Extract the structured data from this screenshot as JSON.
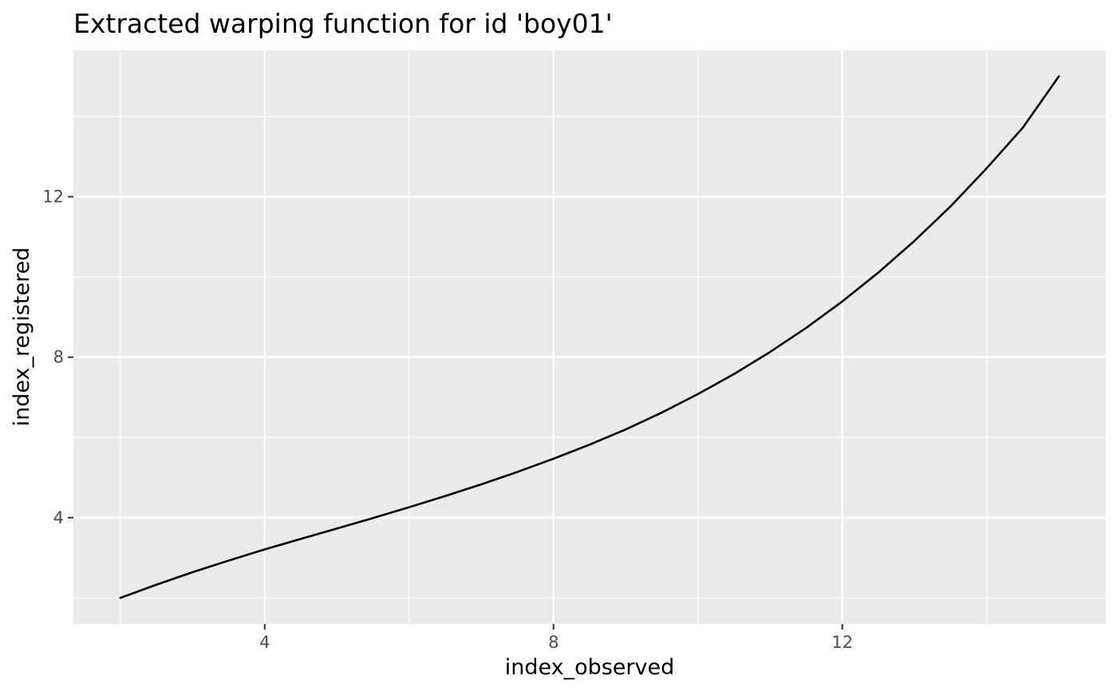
{
  "chart_data": {
    "type": "line",
    "title": "Extracted warping function for id 'boy01'",
    "xlabel": "index_observed",
    "ylabel": "index_registered",
    "xlim": [
      1.35,
      15.65
    ],
    "ylim": [
      1.35,
      15.65
    ],
    "x_ticks": [
      4,
      8,
      12
    ],
    "y_ticks": [
      4,
      8,
      12
    ],
    "x_minor": [
      2,
      6,
      10,
      14
    ],
    "y_minor": [
      2,
      6,
      10,
      14
    ],
    "grid": true,
    "legend": "none",
    "colors": {
      "panel": "#ebebeb",
      "grid": "#ffffff",
      "line": "#000000",
      "tick": "#333333"
    },
    "series": [
      {
        "x": [
          2,
          2.5,
          3,
          3.5,
          4,
          4.5,
          5,
          5.5,
          6,
          6.5,
          7,
          7.5,
          8,
          8.5,
          9,
          9.5,
          10,
          10.5,
          11,
          11.5,
          12,
          12.5,
          13,
          13.5,
          14,
          14.5,
          15
        ],
        "y": [
          2.0,
          2.33,
          2.64,
          2.93,
          3.21,
          3.47,
          3.73,
          3.99,
          4.26,
          4.54,
          4.83,
          5.14,
          5.47,
          5.82,
          6.2,
          6.62,
          7.08,
          7.58,
          8.13,
          8.73,
          9.39,
          10.11,
          10.9,
          11.76,
          12.71,
          13.72,
          15.0
        ]
      }
    ]
  }
}
